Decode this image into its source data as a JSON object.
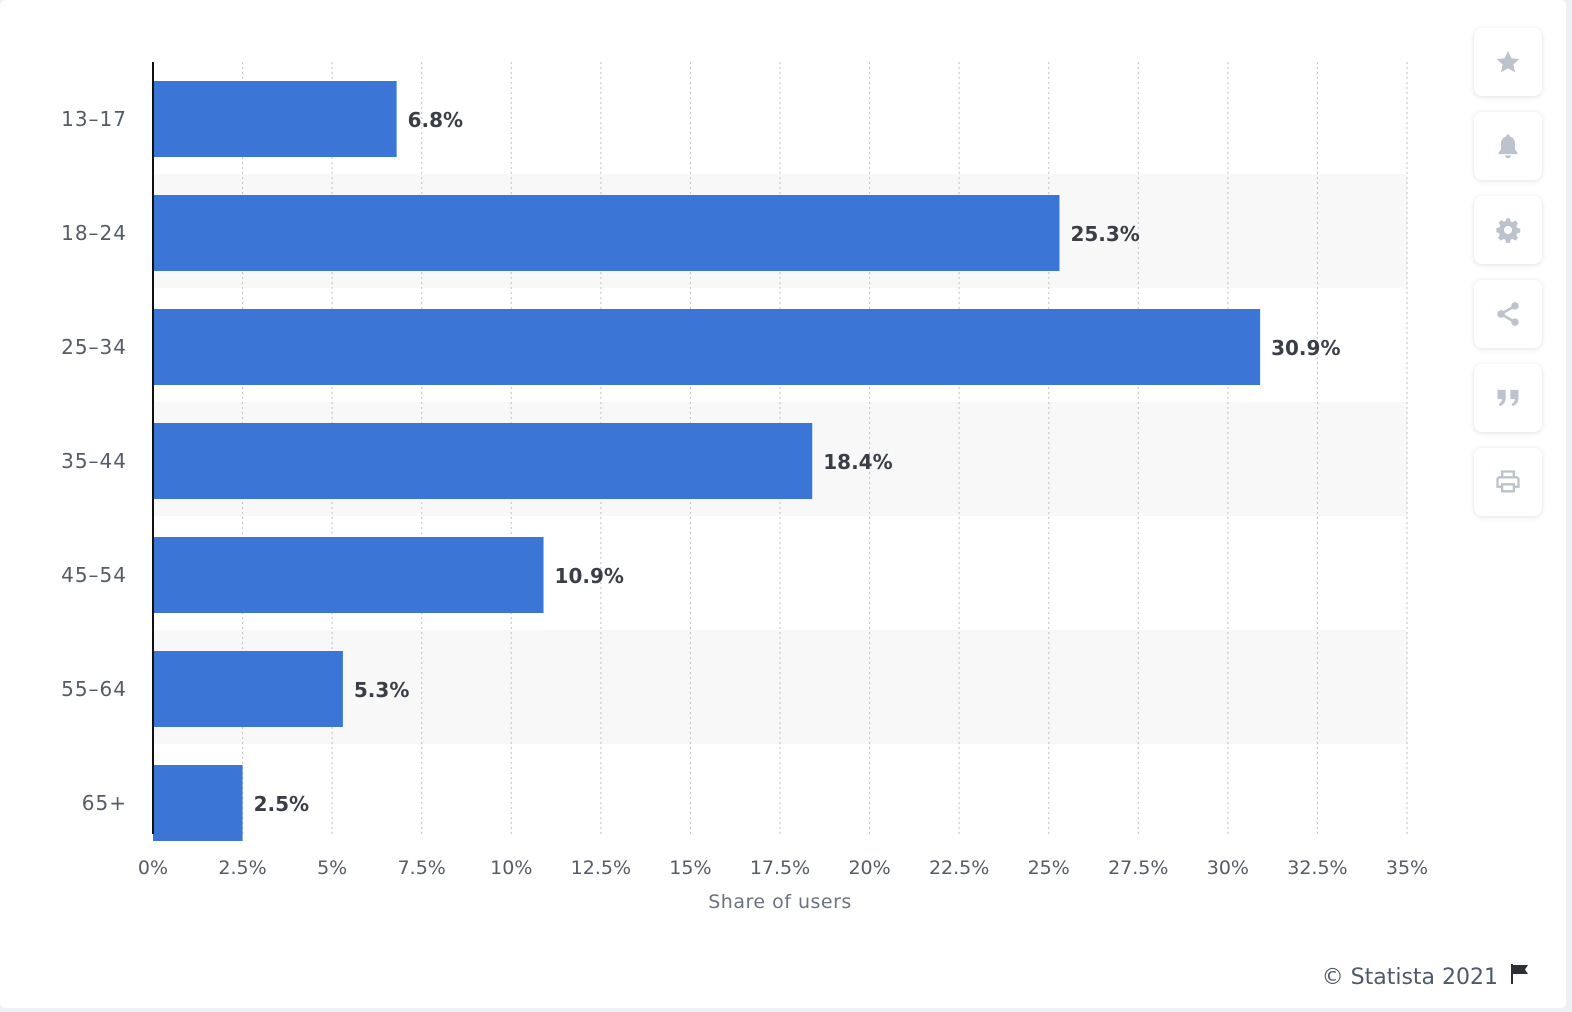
{
  "chart_data": {
    "type": "bar",
    "orientation": "horizontal",
    "categories": [
      "13-17",
      "18-24",
      "25-34",
      "35-44",
      "45-54",
      "55-64",
      "65+"
    ],
    "values": [
      6.8,
      25.3,
      30.9,
      18.4,
      10.9,
      5.3,
      2.5
    ],
    "value_labels": [
      "6.8%",
      "25.3%",
      "30.9%",
      "18.4%",
      "10.9%",
      "5.3%",
      "2.5%"
    ],
    "xlabel": "Share of users",
    "ylabel": "",
    "xlim": [
      0,
      35
    ],
    "x_ticks": [
      0,
      2.5,
      5,
      7.5,
      10,
      12.5,
      15,
      17.5,
      20,
      22.5,
      25,
      27.5,
      30,
      32.5,
      35
    ],
    "x_tick_labels": [
      "0%",
      "2.5%",
      "5%",
      "7.5%",
      "10%",
      "12.5%",
      "15%",
      "17.5%",
      "20%",
      "22.5%",
      "25%",
      "27.5%",
      "30%",
      "32.5%",
      "35%"
    ],
    "grid": "vertical dotted",
    "bar_color": "#3b75d6",
    "alternate_band_color": "#f8f8f8"
  },
  "toolbar": {
    "buttons": [
      {
        "icon": "star-icon",
        "name": "favorite-button"
      },
      {
        "icon": "bell-icon",
        "name": "notification-button"
      },
      {
        "icon": "gear-icon",
        "name": "settings-button"
      },
      {
        "icon": "share-icon",
        "name": "share-button"
      },
      {
        "icon": "quote-icon",
        "name": "cite-button"
      },
      {
        "icon": "print-icon",
        "name": "print-button"
      }
    ],
    "icon_color": "#bcc3cc"
  },
  "credits": {
    "text": "© Statista 2021",
    "icon": "flag-icon"
  }
}
